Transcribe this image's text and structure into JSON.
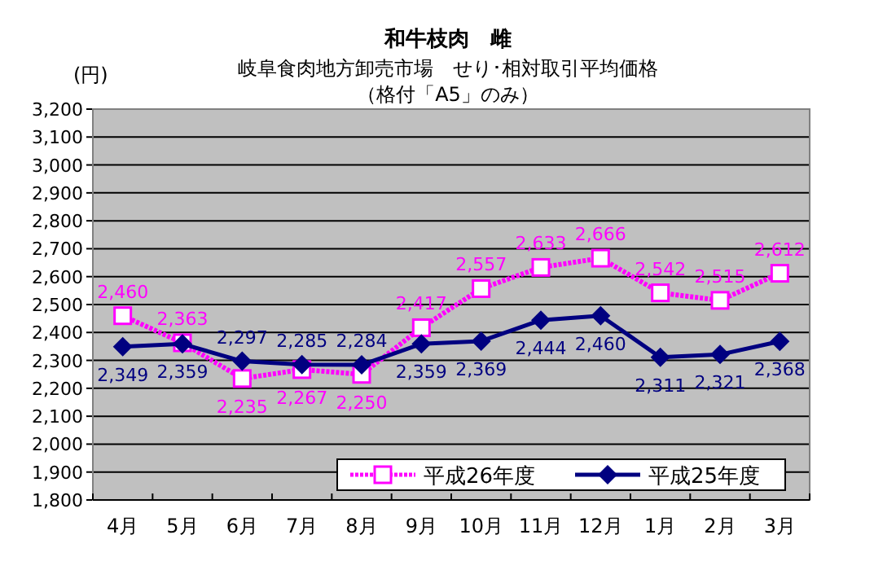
{
  "chart_data": {
    "type": "line",
    "title": "和牛枝肉　雌",
    "subtitle": "岐阜食肉地方卸売市場　せり･相対取引平均価格",
    "annotations": [
      "（格付「A5」のみ）"
    ],
    "ylabel": "(円)",
    "categories": [
      "4月",
      "5月",
      "6月",
      "7月",
      "8月",
      "9月",
      "10月",
      "11月",
      "12月",
      "1月",
      "2月",
      "3月"
    ],
    "series": [
      {
        "name": "平成26年度",
        "color": "#ff00ff",
        "marker": "square",
        "line_style": "dotted",
        "values": [
          2460,
          2363,
          2235,
          2267,
          2250,
          2417,
          2557,
          2633,
          2666,
          2542,
          2515,
          2612
        ],
        "value_labels": [
          "2,460",
          "2,363",
          "2,235",
          "2,267",
          "2,250",
          "2,417",
          "2,557",
          "2,633",
          "2,666",
          "2,542",
          "2,515",
          "2,612"
        ]
      },
      {
        "name": "平成25年度",
        "color": "#000080",
        "marker": "diamond",
        "line_style": "solid",
        "values": [
          2349,
          2359,
          2297,
          2285,
          2284,
          2359,
          2369,
          2444,
          2460,
          2311,
          2321,
          2368
        ],
        "value_labels": [
          "2,349",
          "2,359",
          "2,297",
          "2,285",
          "2,284",
          "2,359",
          "2,369",
          "2,444",
          "2,460",
          "2,311",
          "2,321",
          "2,368"
        ]
      }
    ],
    "ylim": [
      1800,
      3200
    ],
    "yticks": [
      {
        "value": 1800,
        "label": "1,800"
      },
      {
        "value": 1900,
        "label": "1,900"
      },
      {
        "value": 2000,
        "label": "2,000"
      },
      {
        "value": 2100,
        "label": "2,100"
      },
      {
        "value": 2200,
        "label": "2,200"
      },
      {
        "value": 2300,
        "label": "2,300"
      },
      {
        "value": 2400,
        "label": "2,400"
      },
      {
        "value": 2500,
        "label": "2,500"
      },
      {
        "value": 2600,
        "label": "2,600"
      },
      {
        "value": 2700,
        "label": "2,700"
      },
      {
        "value": 2800,
        "label": "2,800"
      },
      {
        "value": 2900,
        "label": "2,900"
      },
      {
        "value": 3000,
        "label": "3,000"
      },
      {
        "value": 3100,
        "label": "3,100"
      },
      {
        "value": 3200,
        "label": "3,200"
      }
    ],
    "grid": "y",
    "legend": "bottom right"
  }
}
